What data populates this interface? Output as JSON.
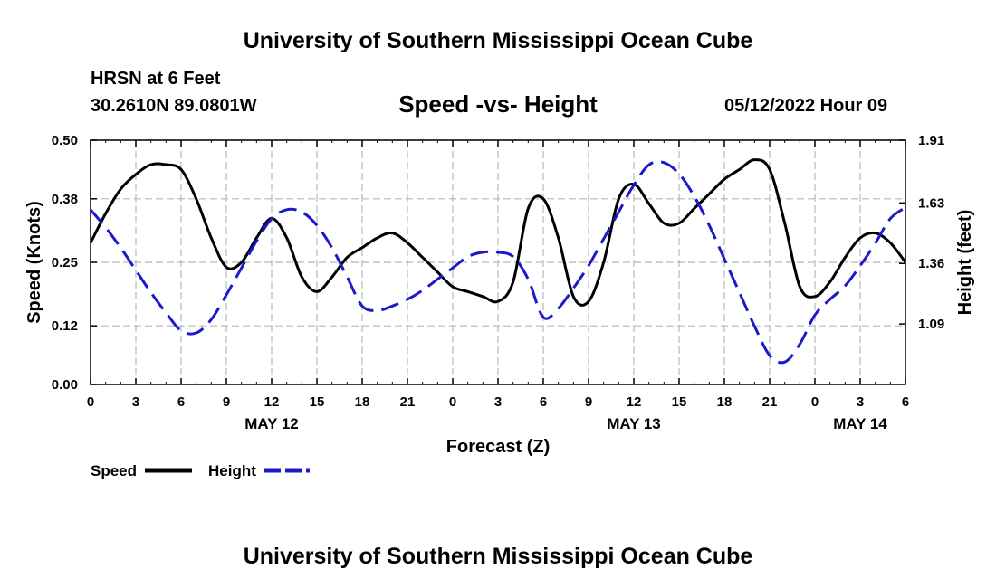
{
  "page": {
    "title_top": "University of Southern Mississippi Ocean Cube",
    "station": "HRSN at 6 Feet",
    "coords": "30.2610N  89.0801W",
    "subtitle": "Speed -vs- Height",
    "datetime": "05/12/2022 Hour 09",
    "title_bottom": "University of Southern Mississippi Ocean Cube"
  },
  "chart_data": {
    "type": "line",
    "title": "Speed -vs- Height",
    "xlabel": "Forecast (Z)",
    "ylabel_left": "Speed (Knots)",
    "ylabel_right": "Height (feet)",
    "x_hours_range": [
      0,
      54
    ],
    "ylim_left": [
      0,
      0.5
    ],
    "ylim_right": [
      0.82,
      1.91
    ],
    "left_ticks": [
      "0.00",
      "0.12",
      "0.25",
      "0.38",
      "0.50"
    ],
    "right_ticks": [
      "1.09",
      "1.36",
      "1.63",
      "1.91"
    ],
    "x_tick_labels": [
      "0",
      "3",
      "6",
      "9",
      "12",
      "15",
      "18",
      "21",
      "0",
      "3",
      "6",
      "9",
      "12",
      "15",
      "18",
      "21",
      "0",
      "3",
      "6"
    ],
    "date_labels": [
      {
        "label": "MAY 12",
        "hour": 12
      },
      {
        "label": "MAY 13",
        "hour": 36
      },
      {
        "label": "MAY 14",
        "hour": 51
      }
    ],
    "legend": [
      {
        "name": "Speed",
        "color": "#000000",
        "dash": "solid"
      },
      {
        "name": "Height",
        "color": "#1a1acc",
        "dash": "dashed"
      }
    ],
    "series": [
      {
        "name": "Speed",
        "axis": "left",
        "color": "#000000",
        "x": [
          0,
          1,
          2,
          3,
          4,
          5,
          6,
          7,
          8,
          9,
          10,
          11,
          12,
          13,
          14,
          15,
          16,
          17,
          18,
          19,
          20,
          21,
          22,
          23,
          24,
          25,
          26,
          27,
          28,
          29,
          30,
          31,
          32,
          33,
          34,
          35,
          36,
          37,
          38,
          39,
          40,
          41,
          42,
          43,
          44,
          45,
          46,
          47,
          48,
          49,
          50,
          51,
          52,
          53,
          54
        ],
        "values": [
          0.29,
          0.35,
          0.4,
          0.43,
          0.45,
          0.45,
          0.44,
          0.38,
          0.3,
          0.24,
          0.25,
          0.3,
          0.34,
          0.3,
          0.22,
          0.19,
          0.22,
          0.26,
          0.28,
          0.3,
          0.31,
          0.29,
          0.26,
          0.23,
          0.2,
          0.19,
          0.18,
          0.17,
          0.21,
          0.36,
          0.38,
          0.3,
          0.18,
          0.17,
          0.25,
          0.38,
          0.41,
          0.37,
          0.33,
          0.33,
          0.36,
          0.39,
          0.42,
          0.44,
          0.46,
          0.44,
          0.33,
          0.2,
          0.18,
          0.21,
          0.26,
          0.3,
          0.31,
          0.29,
          0.25
        ]
      },
      {
        "name": "Height",
        "axis": "right",
        "color": "#1a1acc",
        "x": [
          0,
          1,
          2,
          3,
          4,
          5,
          6,
          7,
          8,
          9,
          10,
          11,
          12,
          13,
          14,
          15,
          16,
          17,
          18,
          19,
          20,
          21,
          22,
          23,
          24,
          25,
          26,
          27,
          28,
          29,
          30,
          31,
          32,
          33,
          34,
          35,
          36,
          37,
          38,
          39,
          40,
          41,
          42,
          43,
          44,
          45,
          46,
          47,
          48,
          49,
          50,
          51,
          52,
          53,
          54
        ],
        "values": [
          1.6,
          1.52,
          1.43,
          1.33,
          1.23,
          1.14,
          1.06,
          1.05,
          1.11,
          1.22,
          1.34,
          1.46,
          1.56,
          1.6,
          1.59,
          1.53,
          1.43,
          1.3,
          1.17,
          1.15,
          1.17,
          1.2,
          1.24,
          1.29,
          1.34,
          1.39,
          1.41,
          1.41,
          1.39,
          1.29,
          1.12,
          1.16,
          1.25,
          1.35,
          1.47,
          1.59,
          1.71,
          1.8,
          1.81,
          1.76,
          1.66,
          1.53,
          1.38,
          1.23,
          1.08,
          0.95,
          0.92,
          1.0,
          1.13,
          1.2,
          1.26,
          1.35,
          1.45,
          1.56,
          1.61
        ]
      }
    ]
  }
}
